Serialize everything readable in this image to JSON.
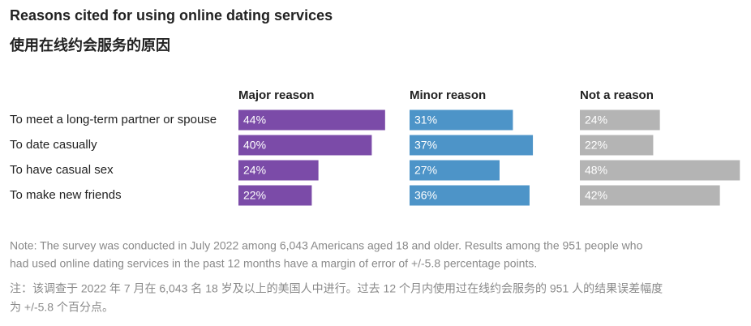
{
  "chart_data": {
    "type": "bar",
    "title": "Reasons cited for using online dating services",
    "subtitle": "使用在线约会服务的原因",
    "categories": [
      "To meet a long-term partner or spouse",
      "To date casually",
      "To have casual sex",
      "To make new friends"
    ],
    "series": [
      {
        "name": "Major reason",
        "color": "#7b4ba8",
        "values": [
          44,
          40,
          24,
          22
        ],
        "value_labels": [
          "44%",
          "40%",
          "24%",
          "22%"
        ]
      },
      {
        "name": "Minor reason",
        "color": "#4d94c8",
        "values": [
          31,
          37,
          27,
          36
        ],
        "value_labels": [
          "31%",
          "37%",
          "27%",
          "36%"
        ]
      },
      {
        "name": "Not a reason",
        "color": "#b4b4b4",
        "values": [
          24,
          22,
          48,
          42
        ],
        "value_labels": [
          "24%",
          "22%",
          "48%",
          "42%"
        ]
      }
    ],
    "note": [
      "Note: The survey was conducted in July 2022 among 6,043 Americans aged 18 and older. Results among the 951 people who",
      "had used online dating services in the past 12 months have a margin of error of +/-5.8 percentage points."
    ],
    "note_zh": [
      "注：该调查于 2022 年 7 月在 6,043 名 18 岁及以上的美国人中进行。过去 12 个月内使用过在线约会服务的 951 人的结果误差幅度",
      "为 +/-5.8 个百分点。"
    ]
  }
}
